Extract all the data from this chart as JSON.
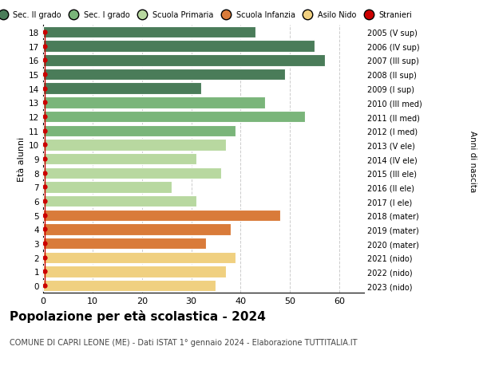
{
  "ages": [
    18,
    17,
    16,
    15,
    14,
    13,
    12,
    11,
    10,
    9,
    8,
    7,
    6,
    5,
    4,
    3,
    2,
    1,
    0
  ],
  "values": [
    43,
    55,
    57,
    49,
    32,
    45,
    53,
    39,
    37,
    31,
    36,
    26,
    31,
    48,
    38,
    33,
    39,
    37,
    35
  ],
  "bar_colors": [
    "#4a7c59",
    "#4a7c59",
    "#4a7c59",
    "#4a7c59",
    "#4a7c59",
    "#7ab57a",
    "#7ab57a",
    "#7ab57a",
    "#b8d8a0",
    "#b8d8a0",
    "#b8d8a0",
    "#b8d8a0",
    "#b8d8a0",
    "#d97b3a",
    "#d97b3a",
    "#d97b3a",
    "#f0d080",
    "#f0d080",
    "#f0d080"
  ],
  "right_labels": [
    "2005 (V sup)",
    "2006 (IV sup)",
    "2007 (III sup)",
    "2008 (II sup)",
    "2009 (I sup)",
    "2010 (III med)",
    "2011 (II med)",
    "2012 (I med)",
    "2013 (V ele)",
    "2014 (IV ele)",
    "2015 (III ele)",
    "2016 (II ele)",
    "2017 (I ele)",
    "2018 (mater)",
    "2019 (mater)",
    "2020 (mater)",
    "2021 (nido)",
    "2022 (nido)",
    "2023 (nido)"
  ],
  "legend_labels": [
    "Sec. II grado",
    "Sec. I grado",
    "Scuola Primaria",
    "Scuola Infanzia",
    "Asilo Nido",
    "Stranieri"
  ],
  "legend_colors": [
    "#4a7c59",
    "#7ab57a",
    "#b8d8a0",
    "#d97b3a",
    "#f0d080",
    "#cc0000"
  ],
  "title": "Popolazione per età scolastica - 2024",
  "subtitle": "COMUNE DI CAPRI LEONE (ME) - Dati ISTAT 1° gennaio 2024 - Elaborazione TUTTITALIA.IT",
  "ylabel_left": "Età alunni",
  "ylabel_right": "Anni di nascita",
  "xlim": [
    0,
    65
  ],
  "xticks": [
    0,
    10,
    20,
    30,
    40,
    50,
    60
  ],
  "bg_color": "#ffffff",
  "grid_color": "#cccccc",
  "stranieri_color": "#cc0000",
  "bar_height": 0.82
}
